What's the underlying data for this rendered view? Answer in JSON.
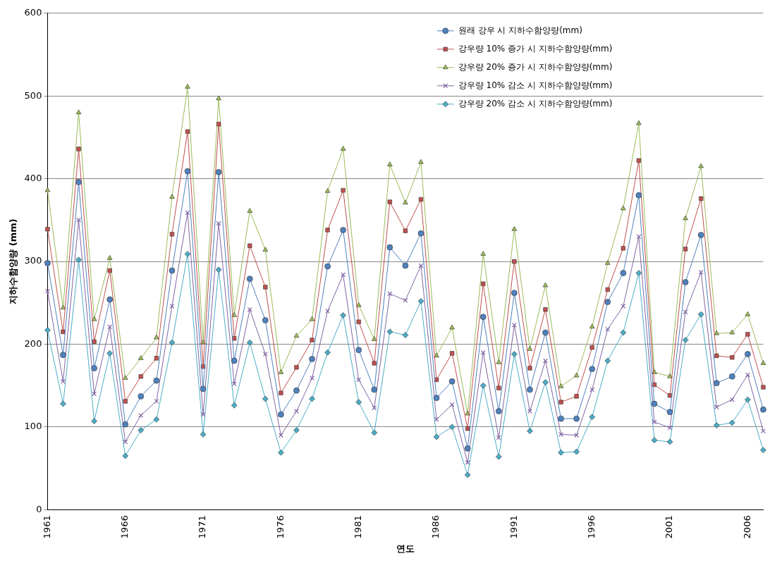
{
  "chart_data": {
    "type": "line",
    "xlabel": "연도",
    "ylabel": "지하수함양량 (mm)",
    "categories": [
      "1961",
      null,
      null,
      null,
      null,
      "1966",
      null,
      null,
      null,
      null,
      "1971",
      null,
      null,
      null,
      null,
      "1976",
      null,
      null,
      null,
      null,
      "1981",
      null,
      null,
      null,
      null,
      "1986",
      null,
      null,
      null,
      null,
      "1991",
      null,
      null,
      null,
      null,
      "1996",
      null,
      null,
      null,
      null,
      "2001",
      null,
      null,
      null,
      null,
      "2006",
      null
    ],
    "ylim": [
      0,
      600
    ],
    "yticks": [
      0,
      100,
      200,
      300,
      400,
      500,
      600
    ],
    "grid": "y",
    "legend": "top right",
    "series": [
      {
        "name": "원래 강우 시 지하수함양량(mm)",
        "color": "#4f81bd",
        "marker": "circle",
        "values": [
          298,
          187,
          396,
          171,
          254,
          103,
          137,
          156,
          289,
          409,
          146,
          408,
          180,
          279,
          229,
          115,
          144,
          182,
          294,
          338,
          193,
          145,
          317,
          295,
          334,
          135,
          155,
          74,
          233,
          119,
          262,
          145,
          214,
          110,
          110,
          170,
          251,
          286,
          380,
          128,
          118,
          275,
          332,
          153,
          161,
          188,
          121
        ]
      },
      {
        "name": "강우량 10% 증가 시 지하수함양량(mm)",
        "color": "#c0504d",
        "marker": "square",
        "values": [
          339,
          215,
          436,
          203,
          289,
          131,
          161,
          183,
          333,
          457,
          173,
          466,
          207,
          319,
          269,
          141,
          172,
          205,
          338,
          386,
          227,
          177,
          372,
          337,
          375,
          157,
          189,
          98,
          273,
          147,
          300,
          171,
          242,
          130,
          137,
          196,
          266,
          316,
          422,
          151,
          138,
          315,
          376,
          186,
          184,
          212,
          148
        ]
      },
      {
        "name": "강우량 20% 증가 시 지하수함양량(mm)",
        "color": "#9bbb59",
        "marker": "triangle",
        "values": [
          386,
          244,
          480,
          230,
          304,
          159,
          183,
          208,
          378,
          511,
          202,
          497,
          235,
          361,
          314,
          166,
          210,
          230,
          385,
          436,
          247,
          206,
          417,
          371,
          420,
          186,
          220,
          116,
          309,
          178,
          339,
          194,
          271,
          149,
          162,
          221,
          298,
          364,
          467,
          166,
          161,
          352,
          415,
          213,
          214,
          236,
          177
        ]
      },
      {
        "name": "강우량 10% 감소 시 지하수함양량(mm)",
        "color": "#8064a2",
        "marker": "cross",
        "values": [
          264,
          155,
          350,
          140,
          221,
          82,
          114,
          131,
          246,
          359,
          115,
          346,
          152,
          242,
          188,
          90,
          119,
          159,
          240,
          284,
          157,
          123,
          261,
          253,
          295,
          109,
          127,
          57,
          190,
          87,
          223,
          119,
          180,
          91,
          90,
          145,
          218,
          246,
          330,
          106,
          99,
          239,
          287,
          124,
          133,
          163,
          95
        ]
      },
      {
        "name": "강우량 20% 감소 시 지하수함양량(mm)",
        "color": "#4bacc6",
        "marker": "diamond",
        "values": [
          217,
          128,
          302,
          107,
          189,
          65,
          96,
          109,
          202,
          309,
          91,
          290,
          126,
          202,
          134,
          69,
          96,
          134,
          190,
          235,
          130,
          93,
          215,
          211,
          252,
          88,
          100,
          42,
          150,
          64,
          188,
          95,
          154,
          69,
          70,
          112,
          180,
          214,
          286,
          84,
          82,
          205,
          236,
          102,
          105,
          133,
          72
        ]
      }
    ]
  }
}
